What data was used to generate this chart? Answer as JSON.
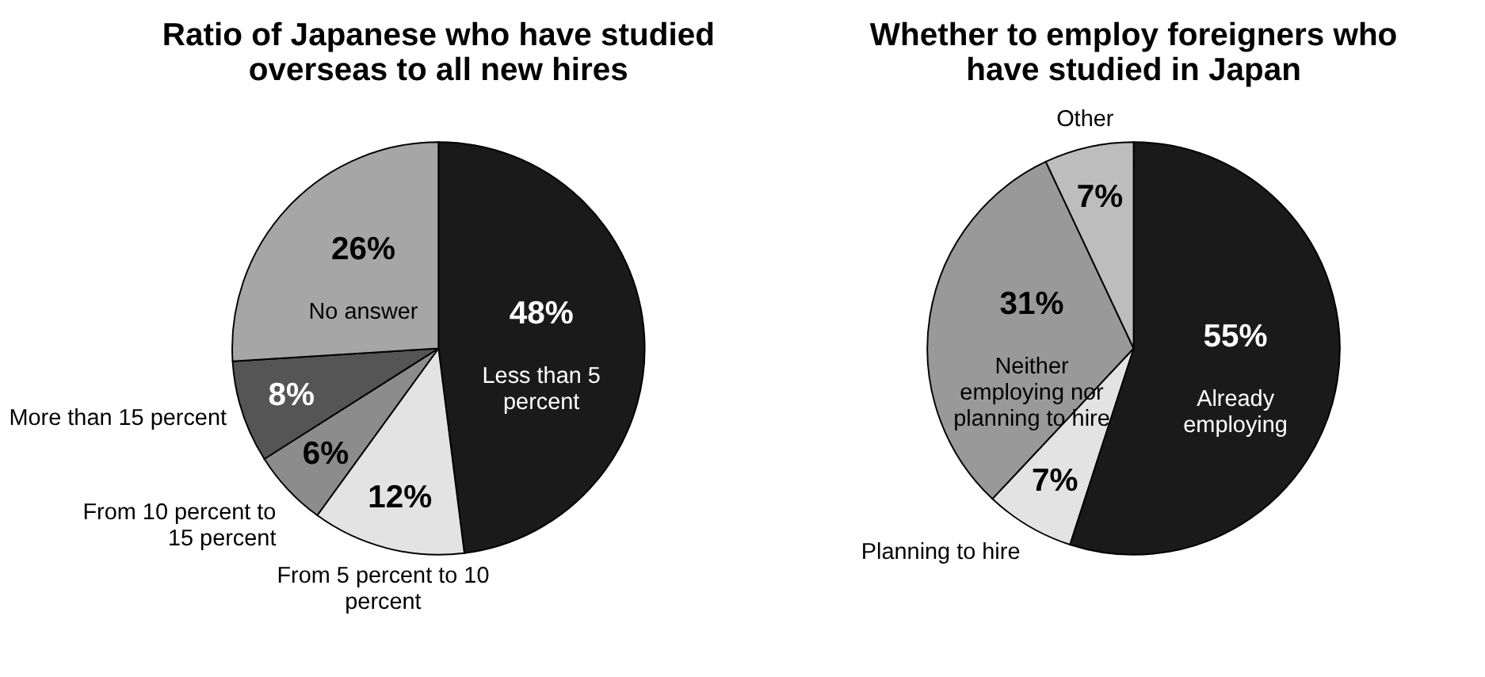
{
  "chart_data": [
    {
      "type": "pie",
      "title": "Ratio of Japanese who have studied overseas to all new hires",
      "categories": [
        "Less than 5 percent",
        "From 5 percent to 10 percent",
        "From 10 percent to 15 percent",
        "More than 15 percent",
        "No answer"
      ],
      "values": [
        48,
        12,
        6,
        8,
        26
      ],
      "value_labels": [
        "48%",
        "12%",
        "6%",
        "8%",
        "26%"
      ],
      "colors": [
        "#1a1a1a",
        "#e3e3e3",
        "#8c8c8c",
        "#555555",
        "#a6a6a6"
      ]
    },
    {
      "type": "pie",
      "title": "Whether to employ foreigners who have studied in Japan",
      "categories": [
        "Already employing",
        "Planning to hire",
        "Neither employing nor planning to hire",
        "Other"
      ],
      "values": [
        55,
        7,
        31,
        7
      ],
      "value_labels": [
        "55%",
        "7%",
        "31%",
        "7%"
      ],
      "colors": [
        "#1a1a1a",
        "#e3e3e3",
        "#999999",
        "#bdbdbd"
      ]
    }
  ]
}
